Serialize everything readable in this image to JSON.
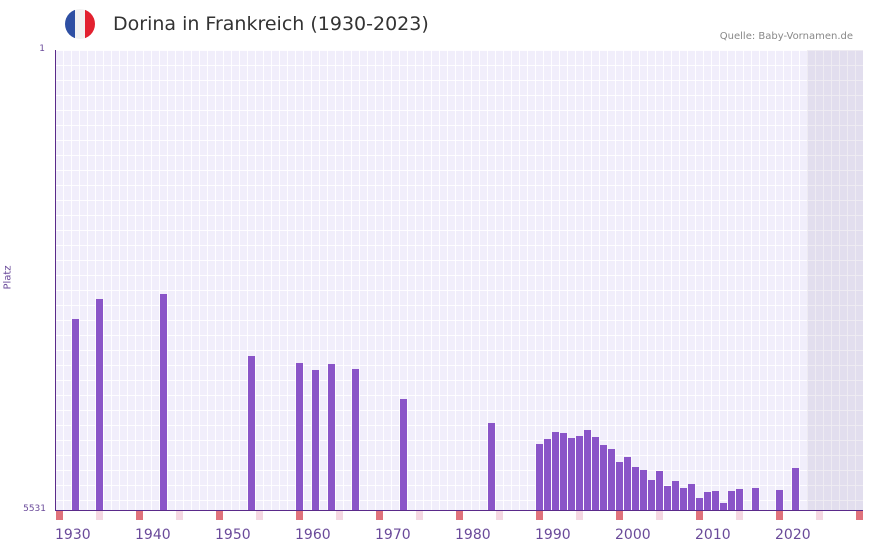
{
  "header": {
    "title": "Dorina in Frankreich (1930-2023)",
    "source": "Quelle: Baby-Vornamen.de",
    "flag": "france-flag"
  },
  "colors": {
    "bar": "#8a55c8",
    "decade_marker": "#e0727c",
    "mid_marker": "#f5d8e2",
    "axis": "#5a2a8a"
  },
  "chart_data": {
    "type": "bar",
    "title": "Dorina in Frankreich (1930-2023)",
    "xlabel": "",
    "ylabel": "Platz",
    "ylim": [
      5531,
      1
    ],
    "y_ticks": [
      "1",
      "5531"
    ],
    "x_ticks": [
      "1930",
      "1940",
      "1950",
      "1960",
      "1970",
      "1980",
      "1990",
      "2000",
      "2010",
      "2020"
    ],
    "grid": true,
    "categories": [
      1932,
      1935,
      1943,
      1954,
      1960,
      1962,
      1964,
      1967,
      1973,
      1984,
      1990,
      1991,
      1992,
      1993,
      1994,
      1995,
      1996,
      1997,
      1998,
      1999,
      2000,
      2001,
      2002,
      2003,
      2004,
      2005,
      2006,
      2007,
      2008,
      2009,
      2010,
      2011,
      2012,
      2013,
      2014,
      2015,
      2017,
      2020,
      2022
    ],
    "values": [
      3235,
      2997,
      2937,
      3682,
      3767,
      3851,
      3779,
      3839,
      4200,
      4489,
      4741,
      4681,
      4597,
      4609,
      4669,
      4645,
      4573,
      4657,
      4753,
      4801,
      4958,
      4898,
      5018,
      5054,
      5175,
      5066,
      5247,
      5187,
      5271,
      5223,
      5392,
      5320,
      5308,
      5452,
      5308,
      5283,
      5271,
      5295,
      5030
    ]
  }
}
